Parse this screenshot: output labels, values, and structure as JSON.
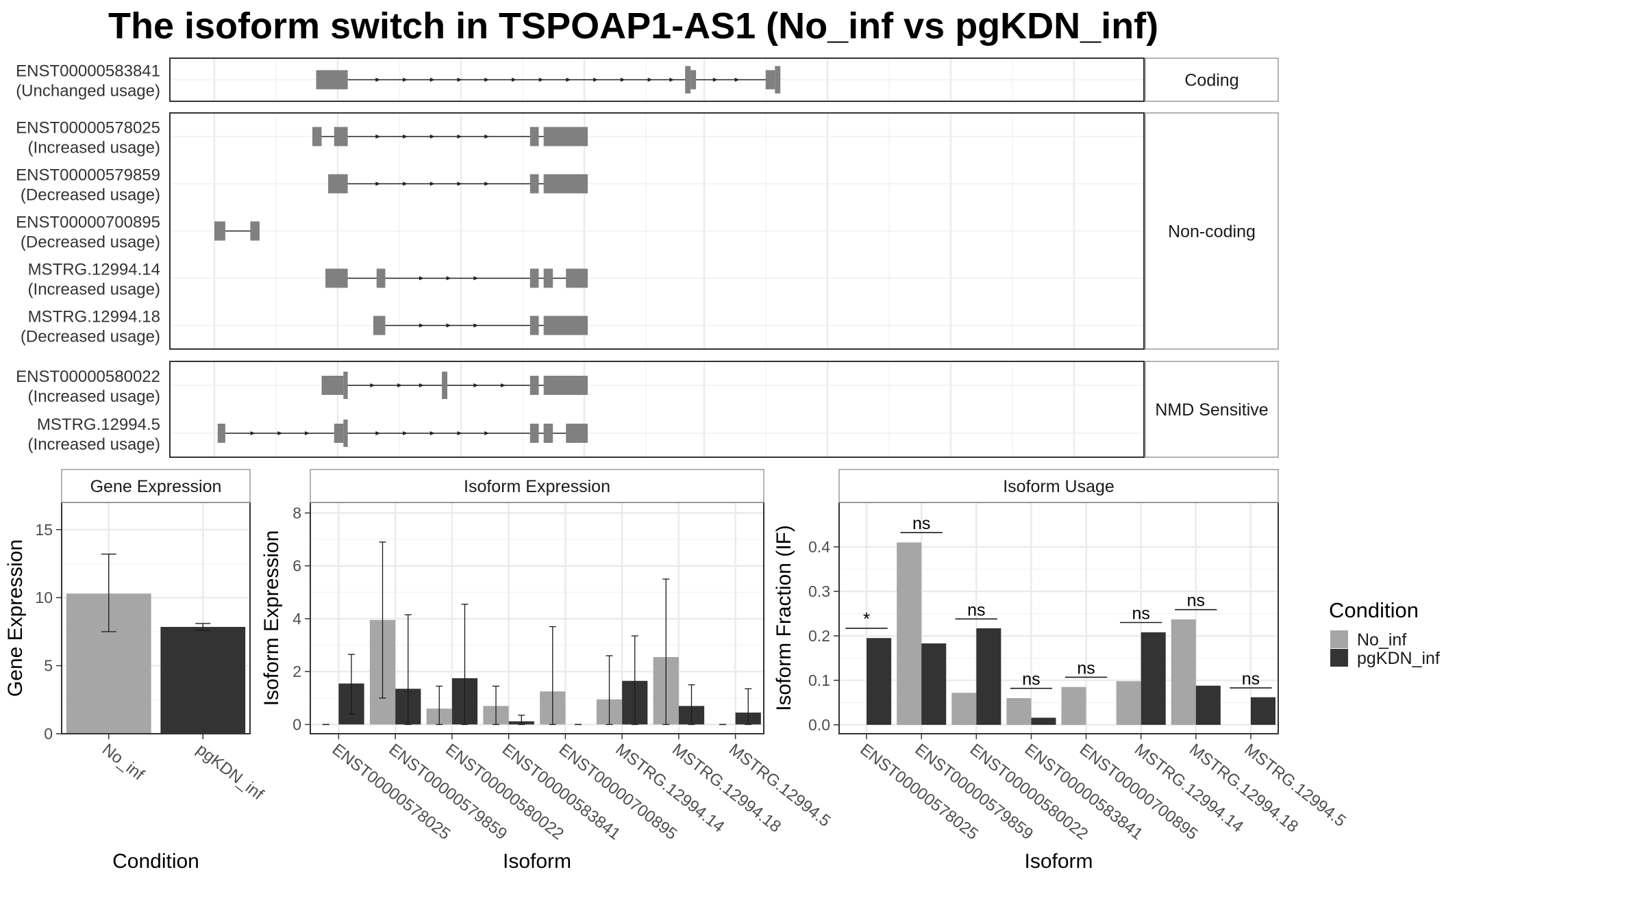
{
  "title": "The isoform switch in TSPOAP1-AS1 (No_inf vs pgKDN_inf)",
  "colors": {
    "no_inf": "#a6a6a6",
    "pgkdn_inf": "#333333",
    "exon": "#808080",
    "panel_border": "#333333",
    "strip_border": "#9a9a9a",
    "grid": "#ebebeb"
  },
  "structure": {
    "coordinate_range": [
      0,
      1150
    ],
    "groups": [
      {
        "label": "Coding",
        "isoforms": [
          {
            "name": "ENST00000583841",
            "usage": "(Unchanged usage)",
            "exons": [
              [
                187,
                245,
                "t"
              ],
              [
                865,
                875,
                "c"
              ],
              [
                875,
                885,
                "t"
              ],
              [
                1013,
                1030,
                "t"
              ],
              [
                1030,
                1040,
                "c"
              ]
            ],
            "arrows": [
              300,
              350,
              400,
              450,
              500,
              550,
              600,
              650,
              700,
              750,
              800,
              840,
              920,
              960
            ]
          }
        ]
      },
      {
        "label": "Non-coding",
        "isoforms": [
          {
            "name": "ENST00000578025",
            "usage": "(Increased usage)",
            "exons": [
              [
                180,
                197,
                "t"
              ],
              [
                220,
                245,
                "t"
              ],
              [
                580,
                596,
                "t"
              ],
              [
                605,
                686,
                "t"
              ]
            ],
            "arrows": [
              300,
              350,
              400,
              450,
              500
            ]
          },
          {
            "name": "ENST00000579859",
            "usage": "(Decreased usage)",
            "exons": [
              [
                209,
                245,
                "t"
              ],
              [
                580,
                596,
                "t"
              ],
              [
                605,
                686,
                "t"
              ]
            ],
            "arrows": [
              300,
              350,
              400,
              450,
              500
            ]
          },
          {
            "name": "ENST00000700895",
            "usage": "(Decreased usage)",
            "exons": [
              [
                0,
                20,
                "t"
              ],
              [
                66,
                83,
                "t"
              ]
            ],
            "arrows": []
          },
          {
            "name": "MSTRG.12994.14",
            "usage": "(Increased usage)",
            "exons": [
              [
                204,
                245,
                "t"
              ],
              [
                298,
                314,
                "t"
              ],
              [
                580,
                596,
                "t"
              ],
              [
                605,
                622,
                "t"
              ],
              [
                646,
                686,
                "t"
              ]
            ],
            "arrows": [
              380,
              430,
              480
            ]
          },
          {
            "name": "MSTRG.12994.18",
            "usage": "(Decreased usage)",
            "exons": [
              [
                292,
                314,
                "t"
              ],
              [
                580,
                596,
                "t"
              ],
              [
                605,
                686,
                "t"
              ]
            ],
            "arrows": [
              380,
              430,
              480
            ]
          }
        ]
      },
      {
        "label": "NMD Sensitive",
        "isoforms": [
          {
            "name": "ENST00000580022",
            "usage": "(Increased usage)",
            "exons": [
              [
                197,
                237,
                "t"
              ],
              [
                237,
                245,
                "c"
              ],
              [
                418,
                428,
                "c"
              ],
              [
                580,
                596,
                "t"
              ],
              [
                605,
                686,
                "t"
              ]
            ],
            "arrows": [
              290,
              340,
              380,
              480,
              530
            ]
          },
          {
            "name": "MSTRG.12994.5",
            "usage": "(Increased usage)",
            "exons": [
              [
                6,
                20,
                "t"
              ],
              [
                220,
                237,
                "t"
              ],
              [
                237,
                245,
                "c"
              ],
              [
                580,
                596,
                "t"
              ],
              [
                605,
                622,
                "t"
              ],
              [
                646,
                686,
                "t"
              ]
            ],
            "arrows": [
              70,
              120,
              170,
              300,
              350,
              400,
              450,
              500
            ]
          }
        ]
      }
    ]
  },
  "chart_data": [
    {
      "type": "bar",
      "title": "Gene Expression",
      "xlabel": "Condition",
      "ylabel": "Gene Expression",
      "categories": [
        "No_inf",
        "pgKDN_inf"
      ],
      "values": [
        10.3,
        7.85
      ],
      "error_low": [
        7.5,
        7.6
      ],
      "error_high": [
        13.2,
        8.1
      ],
      "ylim": [
        0,
        17
      ],
      "yticks": [
        0,
        5,
        10,
        15
      ],
      "grid": true
    },
    {
      "type": "bar",
      "title": "Isoform Expression",
      "xlabel": "Isoform",
      "ylabel": "Isoform Expression",
      "categories": [
        "ENST00000578025",
        "ENST00000579859",
        "ENST00000580022",
        "ENST00000583841",
        "ENST00000700895",
        "MSTRG.12994.14",
        "MSTRG.12994.18",
        "MSTRG.12994.5"
      ],
      "series": [
        {
          "name": "No_inf",
          "values": [
            0.0,
            3.95,
            0.6,
            0.7,
            1.25,
            0.95,
            2.55,
            0.0
          ],
          "error_low": [
            0.0,
            1.0,
            0.0,
            0.0,
            0.0,
            0.0,
            0.0,
            0.0
          ],
          "error_high": [
            0.0,
            6.9,
            1.45,
            1.45,
            3.7,
            2.6,
            5.5,
            0.0
          ]
        },
        {
          "name": "pgKDN_inf",
          "values": [
            1.55,
            1.35,
            1.75,
            0.12,
            0.0,
            1.65,
            0.7,
            0.45
          ],
          "error_low": [
            0.4,
            0.0,
            0.0,
            0.0,
            0.0,
            0.0,
            0.0,
            0.0
          ],
          "error_high": [
            2.65,
            4.15,
            4.55,
            0.35,
            0.0,
            3.35,
            1.5,
            1.35
          ]
        }
      ],
      "ylim": [
        -0.35,
        8.4
      ],
      "yticks": [
        0,
        2,
        4,
        6,
        8
      ],
      "grid": true
    },
    {
      "type": "bar",
      "title": "Isoform Usage",
      "xlabel": "Isoform",
      "ylabel": "Isoform Fraction (IF)",
      "categories": [
        "ENST00000578025",
        "ENST00000579859",
        "ENST00000580022",
        "ENST00000583841",
        "ENST00000700895",
        "MSTRG.12994.14",
        "MSTRG.12994.18",
        "MSTRG.12994.5"
      ],
      "series": [
        {
          "name": "No_inf",
          "values": [
            0.0,
            0.41,
            0.072,
            0.06,
            0.085,
            0.098,
            0.237,
            0.0
          ]
        },
        {
          "name": "pgKDN_inf",
          "values": [
            0.195,
            0.183,
            0.217,
            0.016,
            0.0,
            0.208,
            0.088,
            0.062
          ]
        }
      ],
      "significance": [
        "*",
        "ns",
        "ns",
        "ns",
        "ns",
        "ns",
        "ns",
        "ns"
      ],
      "significance_level": [
        0.217,
        0.432,
        0.238,
        0.082,
        0.107,
        0.23,
        0.259,
        0.083
      ],
      "ylim": [
        -0.02,
        0.5
      ],
      "yticks": [
        0.0,
        0.1,
        0.2,
        0.3,
        0.4
      ],
      "ytick_labels": [
        "0.0",
        "0.1",
        "0.2",
        "0.3",
        "0.4"
      ],
      "grid": true
    }
  ],
  "legend": {
    "title": "Condition",
    "items": [
      "No_inf",
      "pgKDN_inf"
    ],
    "position": "right"
  }
}
